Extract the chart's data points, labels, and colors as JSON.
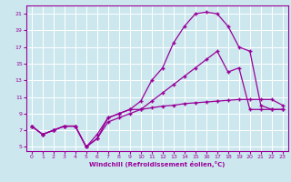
{
  "xlabel": "Windchill (Refroidissement éolien,°C)",
  "bg_color": "#cce8ee",
  "grid_color": "#ffffff",
  "line_color": "#990099",
  "xlim": [
    -0.5,
    23.5
  ],
  "ylim": [
    4.5,
    22
  ],
  "xticks": [
    0,
    1,
    2,
    3,
    4,
    5,
    6,
    7,
    8,
    9,
    10,
    11,
    12,
    13,
    14,
    15,
    16,
    17,
    18,
    19,
    20,
    21,
    22,
    23
  ],
  "yticks": [
    5,
    7,
    9,
    11,
    13,
    15,
    17,
    19,
    21
  ],
  "line1_x": [
    0,
    1,
    2,
    3,
    4,
    5,
    6,
    7,
    8,
    9,
    10,
    11,
    12,
    13,
    14,
    15,
    16,
    17,
    18,
    19,
    20,
    21,
    22,
    23
  ],
  "line1_y": [
    7.5,
    6.5,
    7.0,
    7.5,
    7.5,
    5.0,
    6.0,
    8.5,
    9.0,
    9.5,
    9.5,
    9.7,
    9.9,
    10.0,
    10.2,
    10.3,
    10.4,
    10.5,
    10.6,
    10.7,
    10.7,
    10.7,
    10.7,
    10.0
  ],
  "line2_x": [
    0,
    1,
    2,
    3,
    4,
    5,
    6,
    7,
    8,
    9,
    10,
    11,
    12,
    13,
    14,
    15,
    16,
    17,
    18,
    19,
    20,
    21,
    22,
    23
  ],
  "line2_y": [
    7.5,
    6.5,
    7.0,
    7.5,
    7.5,
    5.0,
    6.5,
    8.5,
    9.0,
    9.5,
    10.5,
    13.0,
    14.5,
    17.5,
    19.5,
    21.0,
    21.2,
    21.0,
    19.5,
    17.0,
    16.5,
    10.0,
    9.5,
    9.5
  ],
  "line3_x": [
    0,
    1,
    2,
    3,
    4,
    5,
    6,
    7,
    8,
    9,
    10,
    11,
    12,
    13,
    14,
    15,
    16,
    17,
    18,
    19,
    20,
    21,
    22,
    23
  ],
  "line3_y": [
    7.5,
    6.5,
    7.0,
    7.5,
    7.5,
    5.0,
    6.0,
    8.0,
    8.5,
    9.0,
    9.5,
    10.5,
    11.5,
    12.5,
    13.5,
    14.5,
    15.5,
    16.5,
    14.0,
    14.5,
    9.5,
    9.5,
    9.5,
    9.5
  ]
}
